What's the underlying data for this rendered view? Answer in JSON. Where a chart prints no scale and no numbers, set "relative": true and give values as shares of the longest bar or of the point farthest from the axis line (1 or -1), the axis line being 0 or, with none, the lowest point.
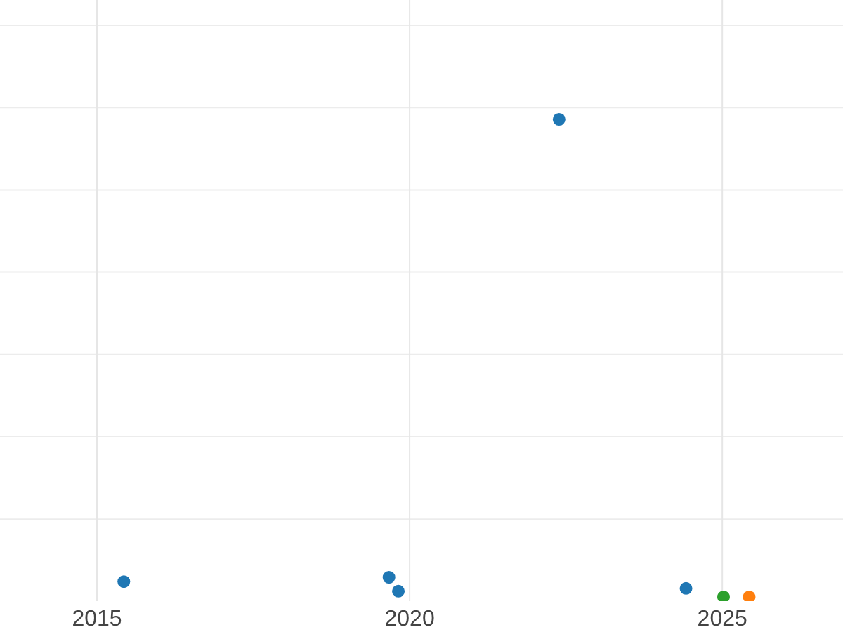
{
  "chart_data": {
    "type": "scatter",
    "relative": true,
    "xlim": [
      2013.45,
      2026.93
    ],
    "xticks": [
      2015,
      2020,
      2025
    ],
    "grid": true,
    "marker": "circle",
    "series": [
      {
        "color": "#1f77b4",
        "x": [
          2015.43,
          2019.67,
          2019.82,
          2022.39,
          2024.42
        ],
        "values": [
          0.032,
          0.041,
          0.012,
          1,
          0.018
        ]
      },
      {
        "color": "#ff7f0e",
        "x": [
          2025.43
        ],
        "values": [
          0
        ]
      },
      {
        "color": "#2ca02c",
        "x": [
          2025.02
        ],
        "values": [
          0
        ]
      }
    ]
  }
}
